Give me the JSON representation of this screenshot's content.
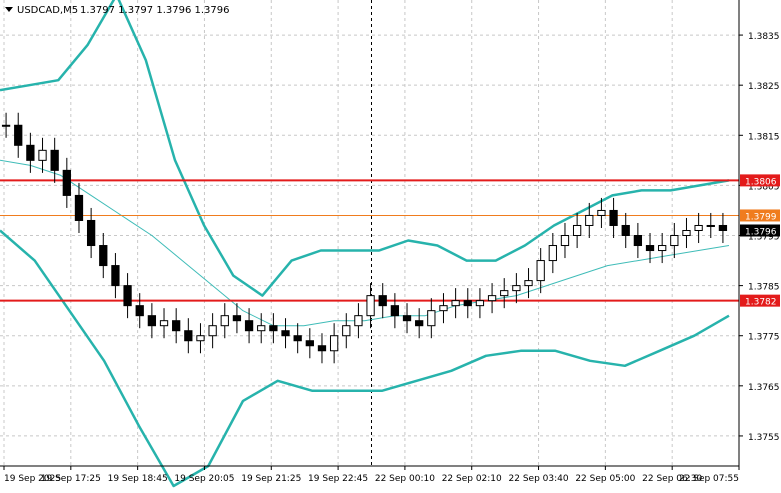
{
  "header": {
    "symbol_label": "USDCAD,M5",
    "ohlc": "1.3797 1.3797 1.3796 1.3796",
    "collapse_icon": "triangle-down-icon"
  },
  "colors": {
    "background": "#ffffff",
    "grid": "#c8c8c8",
    "bollinger": "#27b3ac",
    "ma": "#3fbcb8",
    "support_resistance": "#e31b1b",
    "price_line": "#f07c1e",
    "candle": "#000000"
  },
  "chart_data": {
    "type": "candlestick",
    "symbol": "USDCAD",
    "timeframe": "M5",
    "ylim": [
      1.3749,
      1.3842
    ],
    "y_ticks": [
      {
        "value": 1.3835,
        "label": "1.3835"
      },
      {
        "value": 1.3825,
        "label": "1.3825"
      },
      {
        "value": 1.3815,
        "label": "1.3815"
      },
      {
        "value": 1.3805,
        "label": "1.3805"
      },
      {
        "value": 1.3795,
        "label": "1.3795"
      },
      {
        "value": 1.3785,
        "label": "1.3785"
      },
      {
        "value": 1.3775,
        "label": "1.3775"
      },
      {
        "value": 1.3765,
        "label": "1.3765"
      },
      {
        "value": 1.3755,
        "label": "1.3755"
      }
    ],
    "x_ticks": [
      "19 Sep 2025",
      "19 Sep 17:25",
      "19 Sep 18:45",
      "19 Sep 20:05",
      "19 Sep 21:25",
      "19 Sep 22:45",
      "22 Sep 00:10",
      "22 Sep 02:10",
      "22 Sep 03:40",
      "22 Sep 05:00",
      "22 Sep 06:30",
      "22 Sep 07:55"
    ],
    "session_separator_after_tick": 5,
    "horizontal_levels": [
      {
        "value": 1.3806,
        "label": "1.3806",
        "color": "red"
      },
      {
        "value": 1.3782,
        "label": "1.3782",
        "color": "red"
      },
      {
        "value": 1.3799,
        "label": "1.3799",
        "color": "orange"
      }
    ],
    "bid_line": {
      "value": 1.3796,
      "label": "1.3796"
    },
    "series": [
      {
        "role": "price",
        "kind": "candles",
        "close": [
          1.3817,
          1.3813,
          1.381,
          1.3812,
          1.3808,
          1.3803,
          1.3798,
          1.3793,
          1.3789,
          1.3785,
          1.3781,
          1.3779,
          1.3777,
          1.3778,
          1.3776,
          1.3774,
          1.3775,
          1.3777,
          1.3779,
          1.3778,
          1.3776,
          1.3777,
          1.3776,
          1.3775,
          1.3774,
          1.3773,
          1.3772,
          1.3775,
          1.3777,
          1.3779,
          1.3783,
          1.3781,
          1.3779,
          1.3778,
          1.3777,
          1.378,
          1.3781,
          1.3782,
          1.3781,
          1.3782,
          1.3783,
          1.3784,
          1.3785,
          1.3786,
          1.379,
          1.3793,
          1.3795,
          1.3797,
          1.3799,
          1.38,
          1.3797,
          1.3795,
          1.3793,
          1.3792,
          1.3793,
          1.3795,
          1.3796,
          1.3797,
          1.3797,
          1.3796
        ]
      },
      {
        "role": "bollinger-upper",
        "values": [
          1.3824,
          1.3825,
          1.3826,
          1.3833,
          1.3843,
          1.383,
          1.381,
          1.3797,
          1.3787,
          1.3783,
          1.379,
          1.3792,
          1.3792,
          1.3792,
          1.3794,
          1.3793,
          1.379,
          1.379,
          1.3793,
          1.3797,
          1.38,
          1.3803,
          1.3804,
          1.3804,
          1.3805,
          1.3806
        ]
      },
      {
        "role": "bollinger-middle",
        "values": [
          1.381,
          1.3809,
          1.3807,
          1.3803,
          1.3799,
          1.3795,
          1.379,
          1.3785,
          1.378,
          1.3777,
          1.3777,
          1.3778,
          1.3778,
          1.3779,
          1.3779,
          1.3781,
          1.3782,
          1.3783,
          1.3785,
          1.3787,
          1.3789,
          1.379,
          1.3791,
          1.3792,
          1.3793
        ]
      },
      {
        "role": "bollinger-lower",
        "values": [
          1.3796,
          1.379,
          1.378,
          1.377,
          1.3757,
          1.3745,
          1.3749,
          1.3762,
          1.3766,
          1.3764,
          1.3764,
          1.3764,
          1.3766,
          1.3768,
          1.3771,
          1.3772,
          1.3772,
          1.377,
          1.3769,
          1.3772,
          1.3775,
          1.3779
        ]
      }
    ]
  }
}
